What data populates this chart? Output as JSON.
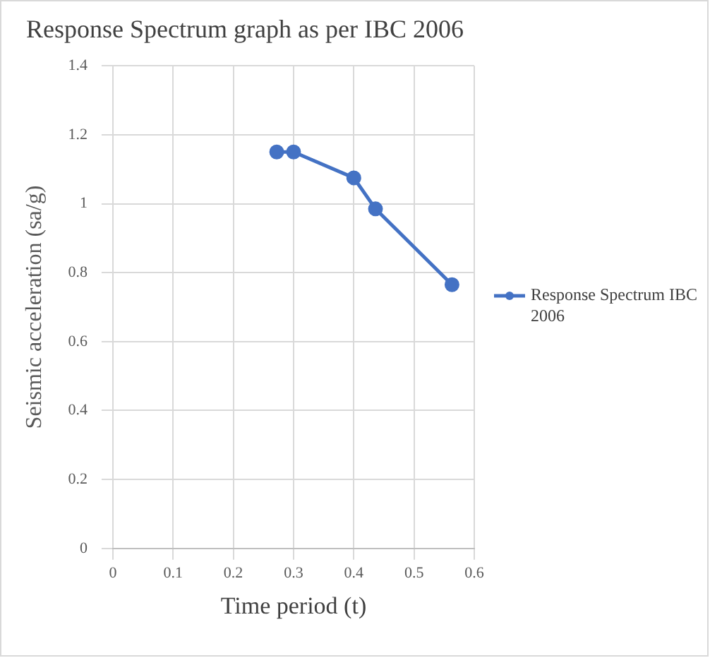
{
  "chart_data": {
    "type": "line",
    "title": "Response Spectrum graph as per IBC 2006",
    "xlabel": "Time period (t)",
    "ylabel": "Seismic acceleration (sa/g)",
    "series": [
      {
        "name": "Response Spectrum IBC 2006",
        "color": "#4472c4",
        "x": [
          0.272,
          0.3,
          0.4,
          0.436,
          0.563
        ],
        "values": [
          1.15,
          1.15,
          1.075,
          0.985,
          0.765
        ]
      }
    ],
    "xlim": [
      0,
      0.6
    ],
    "xticks": [
      0,
      0.1,
      0.2,
      0.3,
      0.4,
      0.5,
      0.6
    ],
    "ylim": [
      0,
      1.4
    ],
    "yticks": [
      0,
      0.2,
      0.4,
      0.6,
      0.8,
      1,
      1.2,
      1.4
    ],
    "grid": true,
    "legend": "right",
    "marker": "circle",
    "line_style": "solid"
  }
}
